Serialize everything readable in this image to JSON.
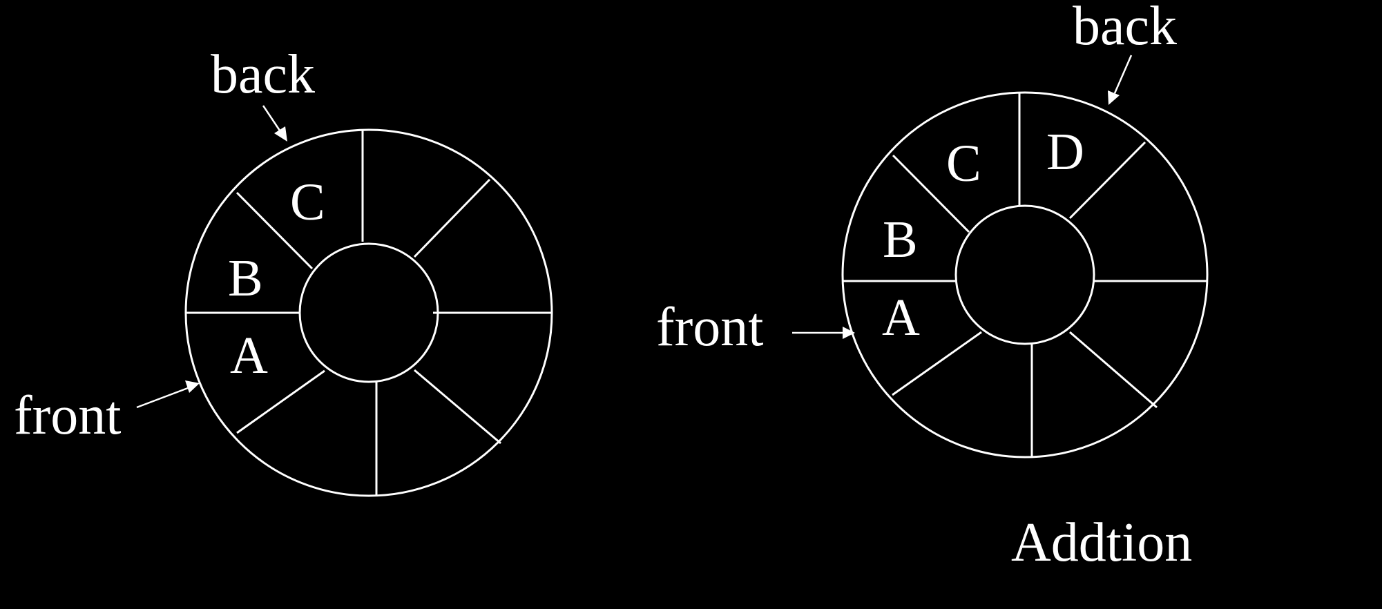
{
  "colors": {
    "background": "#000000",
    "foreground": "#ffffff"
  },
  "queues": [
    {
      "slots": [
        "A",
        "B",
        "C"
      ],
      "front_label": "front",
      "back_label": "back"
    },
    {
      "slots": [
        "A",
        "B",
        "C",
        "D"
      ],
      "front_label": "front",
      "back_label": "back",
      "caption": "Addtion"
    }
  ]
}
